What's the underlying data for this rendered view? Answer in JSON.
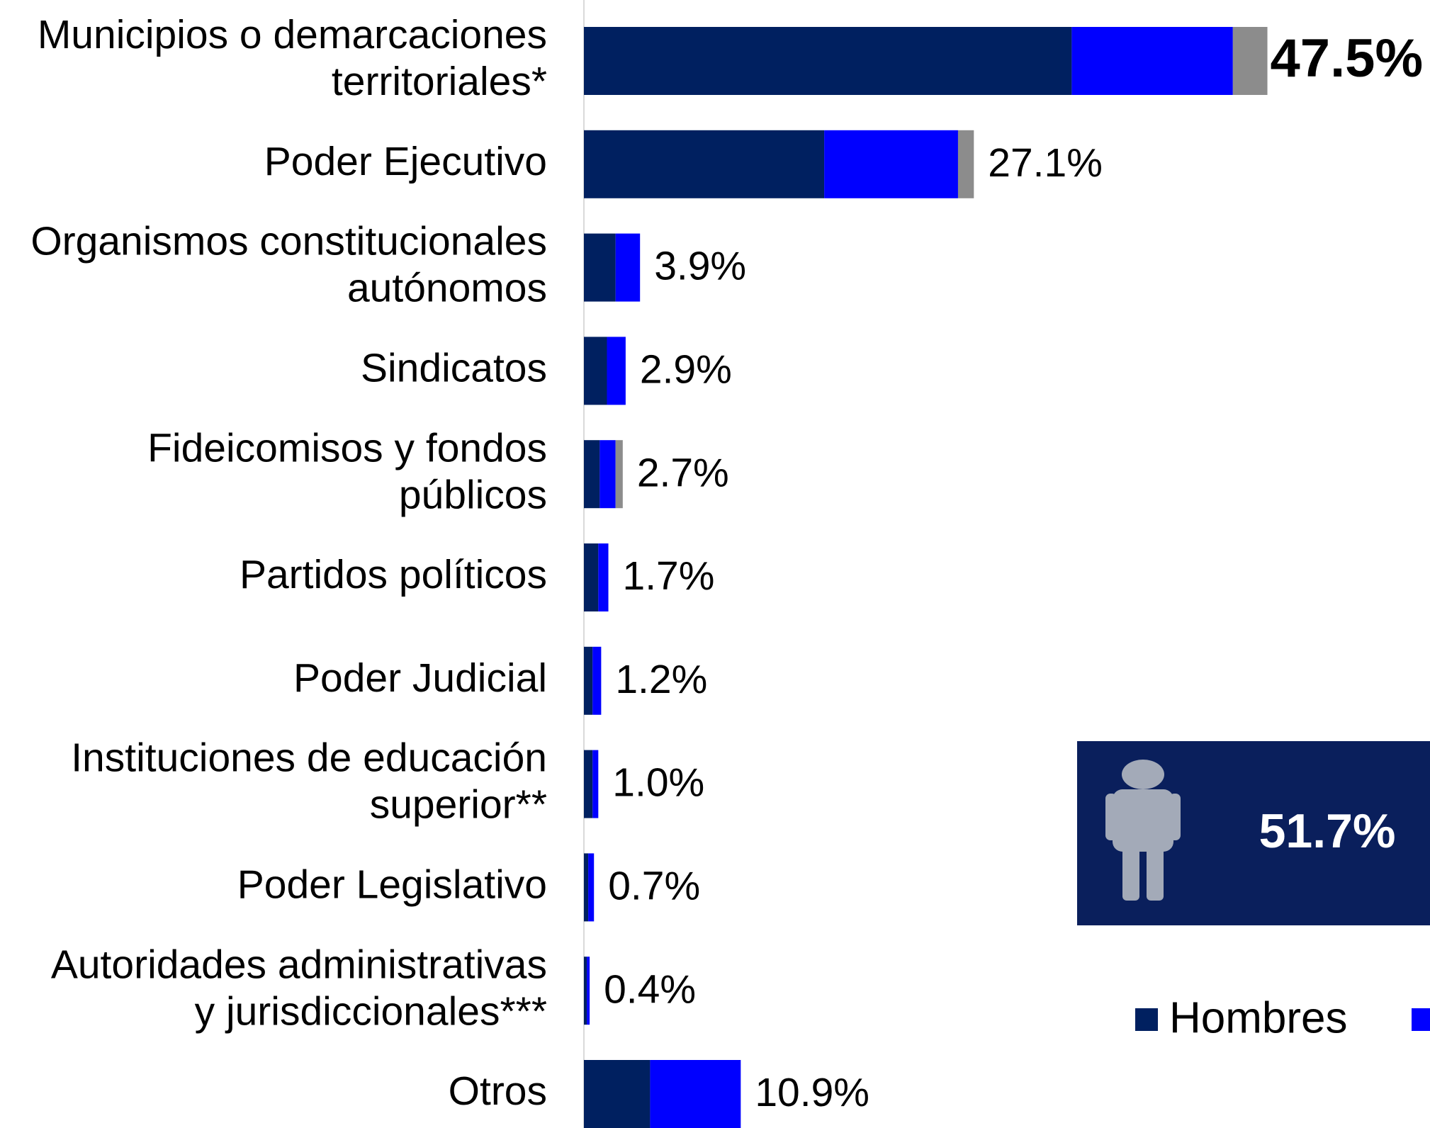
{
  "chart_data": {
    "type": "stacked-bar-horizontal",
    "categories": [
      [
        "Municipios o demarcaciones",
        "territoriales*"
      ],
      [
        "Poder Ejecutivo"
      ],
      [
        "Organismos constitucionales",
        "autónomos"
      ],
      [
        "Sindicatos"
      ],
      [
        "Fideicomisos y fondos",
        "públicos"
      ],
      [
        "Partidos políticos"
      ],
      [
        "Poder Judicial"
      ],
      [
        "Instituciones de educación",
        "superior**"
      ],
      [
        "Poder Legislativo"
      ],
      [
        "Autoridades administrativas",
        "y jurisdiccionales***"
      ],
      [
        "Otros"
      ]
    ],
    "series": [
      {
        "name": "Hombres",
        "color": "#002060",
        "values": [
          33.9,
          16.7,
          2.2,
          1.6,
          1.1,
          1.0,
          0.6,
          0.6,
          0.3,
          0.2,
          4.6
        ]
      },
      {
        "color": "#0000ff",
        "values": [
          11.2,
          9.3,
          1.7,
          1.3,
          1.1,
          0.7,
          0.6,
          0.4,
          0.4,
          0.2,
          6.3
        ]
      },
      {
        "color": "#8c8c8c",
        "values": [
          2.4,
          1.1,
          0,
          0,
          0.5,
          0,
          0,
          0,
          0,
          0,
          0
        ]
      }
    ],
    "totals": [
      47.5,
      27.1,
      3.9,
      2.9,
      2.7,
      1.7,
      1.2,
      1.0,
      0.7,
      0.4,
      10.9
    ],
    "total_labels": [
      "47.5%",
      "27.1%",
      "3.9%",
      "2.9%",
      "2.7%",
      "1.7%",
      "1.2%",
      "1.0%",
      "0.7%",
      "0.4%",
      "10.9%"
    ],
    "xlim": [
      0,
      58.8
    ],
    "annotation": "51.7%"
  }
}
